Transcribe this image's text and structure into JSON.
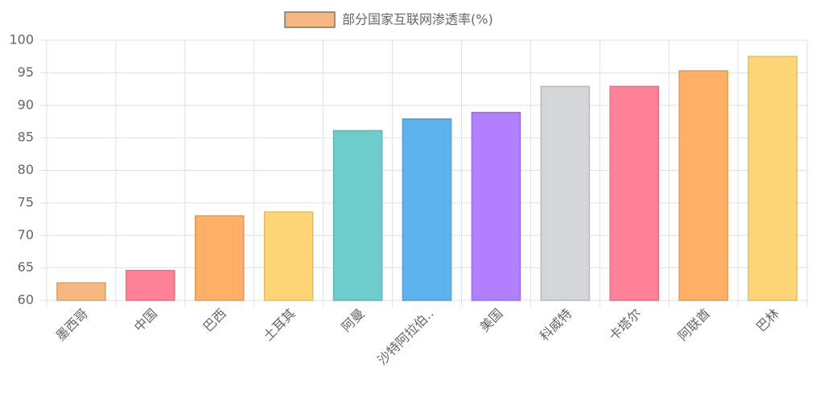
{
  "chart_data": {
    "type": "bar",
    "categories": [
      "墨西哥",
      "中国",
      "巴西",
      "土耳其",
      "阿曼",
      "沙特阿拉伯..",
      "美国",
      "科威特",
      "卡塔尔",
      "阿联酋",
      "巴林"
    ],
    "series": [
      {
        "name": "部分国家互联网渗透率(%)",
        "colors": [
          "#f5b77f",
          "#ff8299",
          "#ffb066",
          "#ffd677",
          "#6fcccc",
          "#5eb3ee",
          "#b07fff",
          "#d4d5d8",
          "#ff8299",
          "#ffb066",
          "#ffd677"
        ],
        "values": [
          62.7,
          64.6,
          73.0,
          73.6,
          86.1,
          87.9,
          88.9,
          92.9,
          92.9,
          95.3,
          97.5
        ]
      }
    ],
    "ylim": [
      60,
      100
    ],
    "yticks": [
      60,
      65,
      70,
      75,
      80,
      85,
      90,
      95,
      100
    ],
    "grid": true,
    "legend": "top"
  }
}
